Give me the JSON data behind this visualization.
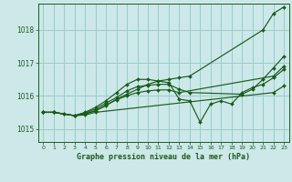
{
  "title": "Graphe pression niveau de la mer (hPa)",
  "bg_color": "#cce8e8",
  "grid_color": "#99cccc",
  "line_color": "#1a5c1a",
  "xlim": [
    -0.5,
    23.5
  ],
  "ylim": [
    1014.6,
    1018.8
  ],
  "yticks": [
    1015,
    1016,
    1017,
    1018
  ],
  "xticks": [
    0,
    1,
    2,
    3,
    4,
    5,
    6,
    7,
    8,
    9,
    10,
    11,
    12,
    13,
    14,
    15,
    16,
    17,
    18,
    19,
    20,
    21,
    22,
    23
  ],
  "lines": [
    {
      "x": [
        0,
        1,
        2,
        3,
        4,
        5,
        6,
        7,
        8,
        9,
        10,
        11,
        12,
        13,
        14,
        21,
        22,
        23
      ],
      "y": [
        1015.5,
        1015.5,
        1015.45,
        1015.4,
        1015.45,
        1015.55,
        1015.7,
        1015.9,
        1016.05,
        1016.2,
        1016.35,
        1016.45,
        1016.5,
        1016.55,
        1016.6,
        1018.0,
        1018.5,
        1018.7
      ]
    },
    {
      "x": [
        0,
        1,
        3,
        4,
        5,
        6,
        7,
        8,
        9,
        10,
        11,
        12,
        13,
        14,
        15,
        16,
        17,
        18,
        19,
        20,
        21,
        22,
        23
      ],
      "y": [
        1015.5,
        1015.5,
        1015.4,
        1015.5,
        1015.65,
        1015.85,
        1016.1,
        1016.35,
        1016.5,
        1016.5,
        1016.45,
        1016.4,
        1015.9,
        1015.85,
        1015.2,
        1015.75,
        1015.85,
        1015.75,
        1016.1,
        1016.25,
        1016.35,
        1016.55,
        1016.8
      ]
    },
    {
      "x": [
        0,
        1,
        3,
        4,
        5,
        6,
        7,
        8,
        9,
        10,
        11,
        12,
        13,
        14,
        19,
        20,
        21,
        22,
        23
      ],
      "y": [
        1015.5,
        1015.5,
        1015.4,
        1015.48,
        1015.6,
        1015.78,
        1015.95,
        1016.15,
        1016.28,
        1016.32,
        1016.35,
        1016.35,
        1016.2,
        1016.1,
        1016.05,
        1016.2,
        1016.5,
        1016.85,
        1017.2
      ]
    },
    {
      "x": [
        0,
        1,
        3,
        4,
        5,
        6,
        7,
        8,
        9,
        10,
        11,
        12,
        13,
        22,
        23
      ],
      "y": [
        1015.5,
        1015.5,
        1015.4,
        1015.45,
        1015.55,
        1015.72,
        1015.88,
        1016.0,
        1016.1,
        1016.15,
        1016.18,
        1016.18,
        1016.1,
        1016.6,
        1016.9
      ]
    },
    {
      "x": [
        0,
        1,
        2,
        3,
        4,
        5,
        22,
        23
      ],
      "y": [
        1015.5,
        1015.5,
        1015.45,
        1015.4,
        1015.42,
        1015.5,
        1016.1,
        1016.3
      ]
    }
  ]
}
